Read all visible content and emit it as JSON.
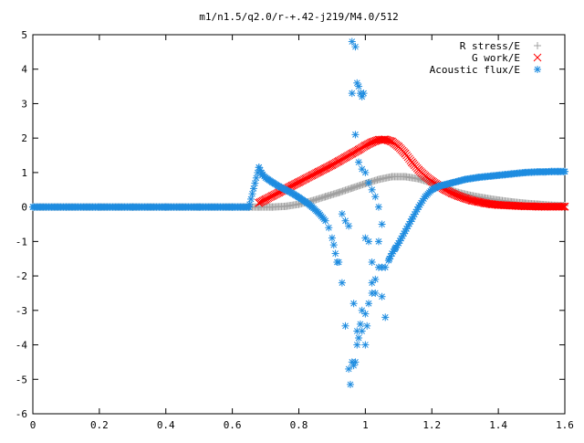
{
  "chart_data": {
    "type": "scatter",
    "title": "m1/n1.5/q2.0/r-+.42-j219/M4.0/512",
    "xlabel": "",
    "ylabel": "",
    "xlim": [
      0,
      1.6
    ],
    "ylim": [
      -6,
      5
    ],
    "x_ticks": [
      0,
      0.2,
      0.4,
      0.6,
      0.8,
      1,
      1.2,
      1.4,
      1.6
    ],
    "x_tick_labels": [
      "0",
      "0.2",
      "0.4",
      "0.6",
      "0.8",
      "1",
      "1.2",
      "1.4",
      "1.6"
    ],
    "y_ticks": [
      -6,
      -5,
      -4,
      -3,
      -2,
      -1,
      0,
      1,
      2,
      3,
      4,
      5
    ],
    "y_tick_labels": [
      "-6",
      "-5",
      "-4",
      "-3",
      "-2",
      "-1",
      "0",
      "1",
      "2",
      "3",
      "4",
      "5"
    ],
    "grid": false,
    "legend_position": "top-right",
    "series": [
      {
        "name": "R stress/E",
        "marker": "plus",
        "color": "#a0a0a0",
        "x": [
          0,
          0.1,
          0.2,
          0.3,
          0.4,
          0.5,
          0.6,
          0.65,
          0.68,
          0.72,
          0.76,
          0.8,
          0.84,
          0.88,
          0.92,
          0.96,
          1.0,
          1.04,
          1.08,
          1.12,
          1.16,
          1.2,
          1.24,
          1.28,
          1.32,
          1.36,
          1.4,
          1.44,
          1.48,
          1.52,
          1.56,
          1.6
        ],
        "y": [
          0,
          0,
          0,
          0,
          0,
          0,
          0,
          0,
          0,
          0,
          0.02,
          0.08,
          0.18,
          0.3,
          0.42,
          0.55,
          0.68,
          0.8,
          0.88,
          0.88,
          0.82,
          0.7,
          0.55,
          0.42,
          0.33,
          0.26,
          0.2,
          0.15,
          0.11,
          0.08,
          0.05,
          0.04
        ]
      },
      {
        "name": "G work/E",
        "marker": "cross",
        "color": "#ff0000",
        "x": [
          0.68,
          0.7,
          0.72,
          0.74,
          0.76,
          0.78,
          0.8,
          0.82,
          0.84,
          0.86,
          0.88,
          0.9,
          0.92,
          0.94,
          0.96,
          0.98,
          1.0,
          1.02,
          1.04,
          1.06,
          1.08,
          1.1,
          1.12,
          1.14,
          1.16,
          1.18,
          1.2,
          1.22,
          1.24,
          1.26,
          1.28,
          1.3,
          1.32,
          1.34,
          1.36,
          1.38,
          1.4,
          1.42,
          1.44,
          1.46,
          1.48,
          1.5,
          1.52,
          1.54,
          1.56,
          1.58,
          1.6
        ],
        "y": [
          0.12,
          0.22,
          0.32,
          0.42,
          0.52,
          0.62,
          0.72,
          0.82,
          0.92,
          1.02,
          1.12,
          1.22,
          1.33,
          1.44,
          1.55,
          1.66,
          1.78,
          1.88,
          1.95,
          1.96,
          1.9,
          1.75,
          1.55,
          1.3,
          1.08,
          0.9,
          0.75,
          0.62,
          0.5,
          0.4,
          0.32,
          0.25,
          0.19,
          0.15,
          0.11,
          0.08,
          0.06,
          0.05,
          0.04,
          0.03,
          0.02,
          0.02,
          0.01,
          0.01,
          0.01,
          0.01,
          0.01
        ]
      },
      {
        "name": "Acoustic flux/E",
        "marker": "star",
        "color": "#1e8ce0",
        "x": [
          0,
          0.1,
          0.2,
          0.3,
          0.4,
          0.5,
          0.6,
          0.65,
          0.68,
          0.69,
          0.7,
          0.72,
          0.74,
          0.76,
          0.78,
          0.8,
          0.82,
          0.84,
          0.86,
          0.88,
          0.89,
          0.9,
          0.905,
          0.91,
          0.915,
          0.92,
          0.93,
          0.94,
          0.95,
          0.955,
          0.96,
          0.965,
          0.97,
          0.975,
          0.98,
          0.99,
          1.0,
          1.005,
          1.01,
          1.02,
          1.03,
          1.04,
          1.05,
          1.06,
          1.07,
          1.08,
          1.09,
          1.1,
          1.12,
          1.14,
          1.16,
          1.18,
          1.2,
          1.22,
          1.24,
          1.26,
          1.28,
          1.3,
          1.32,
          1.34,
          1.36,
          1.38,
          1.4,
          1.42,
          1.44,
          1.46,
          1.48,
          1.5,
          1.52,
          1.54,
          1.56,
          1.58,
          1.6,
          0.96,
          0.97,
          0.975,
          0.98,
          0.985,
          0.99,
          0.995,
          0.96,
          0.97,
          0.98,
          0.99,
          1.0,
          1.01,
          1.02,
          1.03,
          1.04,
          1.05,
          0.93,
          0.94,
          0.95,
          1.0,
          1.01,
          1.02,
          1.04,
          1.05,
          1.06,
          0.965,
          0.975,
          0.985,
          0.99,
          1.0,
          1.02,
          1.03
        ],
        "y": [
          0,
          0,
          0,
          0,
          0,
          0,
          0,
          0,
          1.15,
          0.95,
          0.85,
          0.72,
          0.6,
          0.5,
          0.4,
          0.28,
          0.15,
          0.0,
          -0.18,
          -0.4,
          -0.6,
          -0.9,
          -1.1,
          -1.35,
          -1.6,
          -1.6,
          -2.2,
          -3.45,
          -4.7,
          -5.15,
          -4.5,
          -4.6,
          -4.5,
          -4.0,
          -3.8,
          -3.6,
          -4.0,
          -3.45,
          -2.8,
          -2.5,
          -2.1,
          -1.75,
          -1.75,
          -1.75,
          -1.55,
          -1.35,
          -1.2,
          -1.05,
          -0.7,
          -0.35,
          0.0,
          0.3,
          0.5,
          0.6,
          0.65,
          0.7,
          0.75,
          0.8,
          0.83,
          0.86,
          0.88,
          0.9,
          0.92,
          0.94,
          0.96,
          0.98,
          1.0,
          1.01,
          1.02,
          1.02,
          1.03,
          1.03,
          1.03,
          4.8,
          4.65,
          3.6,
          3.5,
          3.3,
          3.2,
          3.3,
          3.3,
          2.1,
          1.3,
          1.1,
          1.0,
          0.7,
          0.5,
          0.3,
          0.0,
          -0.5,
          -0.2,
          -0.4,
          -0.55,
          -0.9,
          -1.0,
          -1.6,
          -1.0,
          -2.6,
          -3.2,
          -2.8,
          -3.6,
          -3.4,
          -3.0,
          -3.1,
          -2.2,
          -2.5
        ]
      }
    ]
  }
}
